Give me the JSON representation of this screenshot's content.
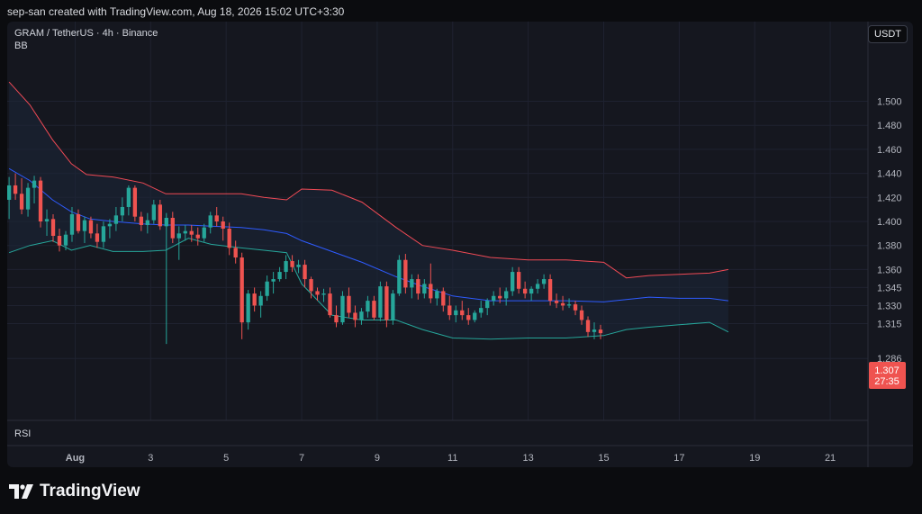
{
  "header": {
    "attribution": "sep-san created with TradingView.com, Aug 18, 2026 15:02 UTC+3:30"
  },
  "legend": {
    "symbol": "GRAM / TetherUS · 4h · Binance",
    "indicator": "BB"
  },
  "rsi_label": "RSI",
  "currency": "USDT",
  "price_tag": {
    "price": "1.307",
    "countdown": "27:35"
  },
  "brand": {
    "name": "TradingView",
    "logo_icon": "tradingview-logo-icon"
  },
  "colors": {
    "up": "#26a69a",
    "down": "#ef5350",
    "bb_upper": "#f04a55",
    "bb_basis": "#2e5bff",
    "bb_lower": "#26a69a",
    "bb_fill": "#1c2738"
  },
  "chart_data": {
    "type": "candlestick",
    "y_ticks": [
      "1.500",
      "1.480",
      "1.460",
      "1.440",
      "1.420",
      "1.400",
      "1.380",
      "1.360",
      "1.345",
      "1.330",
      "1.315",
      "1.286"
    ],
    "x_ticks": [
      {
        "label": "Aug",
        "day": 1
      },
      {
        "label": "3",
        "day": 3
      },
      {
        "label": "5",
        "day": 5
      },
      {
        "label": "7",
        "day": 7
      },
      {
        "label": "9",
        "day": 9
      },
      {
        "label": "11",
        "day": 11
      },
      {
        "label": "13",
        "day": 13
      },
      {
        "label": "15",
        "day": 15
      },
      {
        "label": "17",
        "day": 17
      },
      {
        "label": "19",
        "day": 19
      },
      {
        "label": "21",
        "day": 21
      }
    ],
    "x_range_days": [
      -0.8,
      22.0
    ],
    "candles_per_day": 6,
    "first_candle_day": -0.75,
    "candles": [
      [
        1.418,
        1.437,
        1.402,
        1.43
      ],
      [
        1.43,
        1.44,
        1.418,
        1.423
      ],
      [
        1.423,
        1.436,
        1.406,
        1.41
      ],
      [
        1.41,
        1.432,
        1.404,
        1.428
      ],
      [
        1.428,
        1.438,
        1.415,
        1.434
      ],
      [
        1.434,
        1.437,
        1.395,
        1.4
      ],
      [
        1.4,
        1.41,
        1.388,
        1.402
      ],
      [
        1.402,
        1.406,
        1.383,
        1.388
      ],
      [
        1.388,
        1.394,
        1.375,
        1.38
      ],
      [
        1.38,
        1.392,
        1.376,
        1.389
      ],
      [
        1.389,
        1.412,
        1.383,
        1.406
      ],
      [
        1.406,
        1.41,
        1.39,
        1.392
      ],
      [
        1.392,
        1.404,
        1.382,
        1.401
      ],
      [
        1.401,
        1.404,
        1.386,
        1.39
      ],
      [
        1.39,
        1.398,
        1.378,
        1.383
      ],
      [
        1.383,
        1.4,
        1.378,
        1.396
      ],
      [
        1.396,
        1.402,
        1.386,
        1.398
      ],
      [
        1.398,
        1.412,
        1.392,
        1.405
      ],
      [
        1.405,
        1.42,
        1.4,
        1.412
      ],
      [
        1.412,
        1.43,
        1.405,
        1.428
      ],
      [
        1.428,
        1.43,
        1.4,
        1.404
      ],
      [
        1.404,
        1.408,
        1.392,
        1.397
      ],
      [
        1.397,
        1.407,
        1.39,
        1.401
      ],
      [
        1.401,
        1.418,
        1.398,
        1.414
      ],
      [
        1.414,
        1.418,
        1.393,
        1.396
      ],
      [
        1.396,
        1.407,
        1.298,
        1.403
      ],
      [
        1.403,
        1.408,
        1.382,
        1.386
      ],
      [
        1.386,
        1.396,
        1.368,
        1.39
      ],
      [
        1.39,
        1.397,
        1.384,
        1.392
      ],
      [
        1.392,
        1.397,
        1.383,
        1.389
      ],
      [
        1.389,
        1.395,
        1.38,
        1.386
      ],
      [
        1.386,
        1.398,
        1.383,
        1.395
      ],
      [
        1.395,
        1.408,
        1.39,
        1.405
      ],
      [
        1.405,
        1.412,
        1.396,
        1.4
      ],
      [
        1.4,
        1.404,
        1.384,
        1.394
      ],
      [
        1.394,
        1.399,
        1.372,
        1.378
      ],
      [
        1.378,
        1.384,
        1.365,
        1.37
      ],
      [
        1.37,
        1.374,
        1.302,
        1.316
      ],
      [
        1.316,
        1.343,
        1.31,
        1.34
      ],
      [
        1.34,
        1.345,
        1.325,
        1.33
      ],
      [
        1.33,
        1.342,
        1.32,
        1.338
      ],
      [
        1.338,
        1.355,
        1.334,
        1.35
      ],
      [
        1.35,
        1.358,
        1.34,
        1.352
      ],
      [
        1.352,
        1.362,
        1.35,
        1.358
      ],
      [
        1.358,
        1.372,
        1.352,
        1.367
      ],
      [
        1.367,
        1.372,
        1.358,
        1.362
      ],
      [
        1.362,
        1.368,
        1.357,
        1.364
      ],
      [
        1.364,
        1.368,
        1.345,
        1.352
      ],
      [
        1.352,
        1.354,
        1.336,
        1.342
      ],
      [
        1.342,
        1.345,
        1.334,
        1.339
      ],
      [
        1.339,
        1.344,
        1.333,
        1.34
      ],
      [
        1.34,
        1.345,
        1.32,
        1.322
      ],
      [
        1.322,
        1.33,
        1.312,
        1.316
      ],
      [
        1.316,
        1.342,
        1.314,
        1.338
      ],
      [
        1.338,
        1.345,
        1.32,
        1.324
      ],
      [
        1.324,
        1.33,
        1.312,
        1.318
      ],
      [
        1.318,
        1.328,
        1.314,
        1.325
      ],
      [
        1.325,
        1.338,
        1.32,
        1.334
      ],
      [
        1.334,
        1.338,
        1.318,
        1.32
      ],
      [
        1.32,
        1.35,
        1.317,
        1.346
      ],
      [
        1.346,
        1.35,
        1.312,
        1.318
      ],
      [
        1.318,
        1.343,
        1.314,
        1.34
      ],
      [
        1.34,
        1.372,
        1.338,
        1.368
      ],
      [
        1.368,
        1.373,
        1.34,
        1.345
      ],
      [
        1.345,
        1.356,
        1.336,
        1.352
      ],
      [
        1.352,
        1.356,
        1.335,
        1.34
      ],
      [
        1.34,
        1.352,
        1.336,
        1.348
      ],
      [
        1.348,
        1.365,
        1.332,
        1.336
      ],
      [
        1.336,
        1.344,
        1.33,
        1.342
      ],
      [
        1.342,
        1.345,
        1.325,
        1.33
      ],
      [
        1.33,
        1.338,
        1.318,
        1.322
      ],
      [
        1.322,
        1.33,
        1.316,
        1.326
      ],
      [
        1.326,
        1.334,
        1.318,
        1.322
      ],
      [
        1.322,
        1.328,
        1.314,
        1.318
      ],
      [
        1.318,
        1.326,
        1.316,
        1.324
      ],
      [
        1.324,
        1.334,
        1.32,
        1.328
      ],
      [
        1.328,
        1.336,
        1.322,
        1.334
      ],
      [
        1.334,
        1.342,
        1.33,
        1.338
      ],
      [
        1.338,
        1.345,
        1.332,
        1.336
      ],
      [
        1.336,
        1.345,
        1.33,
        1.342
      ],
      [
        1.342,
        1.362,
        1.338,
        1.358
      ],
      [
        1.358,
        1.362,
        1.34,
        1.344
      ],
      [
        1.344,
        1.35,
        1.336,
        1.34
      ],
      [
        1.34,
        1.346,
        1.334,
        1.344
      ],
      [
        1.344,
        1.352,
        1.34,
        1.348
      ],
      [
        1.348,
        1.356,
        1.344,
        1.352
      ],
      [
        1.352,
        1.356,
        1.33,
        1.334
      ],
      [
        1.334,
        1.34,
        1.328,
        1.332
      ],
      [
        1.332,
        1.338,
        1.326,
        1.33
      ],
      [
        1.33,
        1.336,
        1.328,
        1.331
      ],
      [
        1.331,
        1.334,
        1.322,
        1.326
      ],
      [
        1.326,
        1.33,
        1.314,
        1.318
      ],
      [
        1.318,
        1.321,
        1.304,
        1.308
      ],
      [
        1.308,
        1.316,
        1.302,
        1.31
      ],
      [
        1.31,
        1.314,
        1.302,
        1.307
      ]
    ],
    "bollinger": {
      "upper": [
        [
          -0.75,
          1.516
        ],
        [
          -0.2,
          1.497
        ],
        [
          0.4,
          1.468
        ],
        [
          0.9,
          1.448
        ],
        [
          1.3,
          1.439
        ],
        [
          2.0,
          1.437
        ],
        [
          2.8,
          1.432
        ],
        [
          3.4,
          1.423
        ],
        [
          4.0,
          1.423
        ],
        [
          4.6,
          1.423
        ],
        [
          5.4,
          1.423
        ],
        [
          6.0,
          1.42
        ],
        [
          6.6,
          1.418
        ],
        [
          7.0,
          1.427
        ],
        [
          7.8,
          1.426
        ],
        [
          8.6,
          1.416
        ],
        [
          9.5,
          1.395
        ],
        [
          10.2,
          1.38
        ],
        [
          11.0,
          1.376
        ],
        [
          12.0,
          1.37
        ],
        [
          13.0,
          1.368
        ],
        [
          14.0,
          1.368
        ],
        [
          15.0,
          1.366
        ],
        [
          15.6,
          1.353
        ],
        [
          16.2,
          1.355
        ],
        [
          17.0,
          1.356
        ],
        [
          17.8,
          1.357
        ],
        [
          18.3,
          1.36
        ]
      ],
      "basis": [
        [
          -0.75,
          1.444
        ],
        [
          -0.2,
          1.434
        ],
        [
          0.4,
          1.418
        ],
        [
          0.9,
          1.408
        ],
        [
          1.4,
          1.402
        ],
        [
          2.0,
          1.4
        ],
        [
          2.8,
          1.398
        ],
        [
          3.4,
          1.397
        ],
        [
          4.0,
          1.397
        ],
        [
          4.6,
          1.396
        ],
        [
          5.4,
          1.395
        ],
        [
          6.0,
          1.393
        ],
        [
          6.6,
          1.39
        ],
        [
          7.0,
          1.384
        ],
        [
          7.8,
          1.375
        ],
        [
          8.6,
          1.366
        ],
        [
          9.5,
          1.354
        ],
        [
          10.2,
          1.346
        ],
        [
          11.0,
          1.338
        ],
        [
          12.0,
          1.334
        ],
        [
          13.0,
          1.334
        ],
        [
          14.0,
          1.334
        ],
        [
          15.0,
          1.333
        ],
        [
          15.6,
          1.335
        ],
        [
          16.2,
          1.337
        ],
        [
          17.0,
          1.336
        ],
        [
          17.8,
          1.336
        ],
        [
          18.3,
          1.334
        ]
      ],
      "lower": [
        [
          -0.75,
          1.374
        ],
        [
          -0.2,
          1.38
        ],
        [
          0.4,
          1.384
        ],
        [
          0.9,
          1.376
        ],
        [
          1.4,
          1.38
        ],
        [
          2.0,
          1.375
        ],
        [
          2.8,
          1.375
        ],
        [
          3.4,
          1.376
        ],
        [
          4.0,
          1.386
        ],
        [
          4.6,
          1.381
        ],
        [
          5.4,
          1.378
        ],
        [
          6.0,
          1.376
        ],
        [
          6.6,
          1.374
        ],
        [
          7.0,
          1.348
        ],
        [
          7.8,
          1.322
        ],
        [
          8.6,
          1.318
        ],
        [
          9.5,
          1.318
        ],
        [
          10.2,
          1.31
        ],
        [
          11.0,
          1.303
        ],
        [
          12.0,
          1.302
        ],
        [
          13.0,
          1.303
        ],
        [
          14.0,
          1.303
        ],
        [
          15.0,
          1.305
        ],
        [
          15.6,
          1.31
        ],
        [
          16.2,
          1.312
        ],
        [
          17.0,
          1.314
        ],
        [
          17.8,
          1.316
        ],
        [
          18.3,
          1.308
        ]
      ]
    }
  }
}
